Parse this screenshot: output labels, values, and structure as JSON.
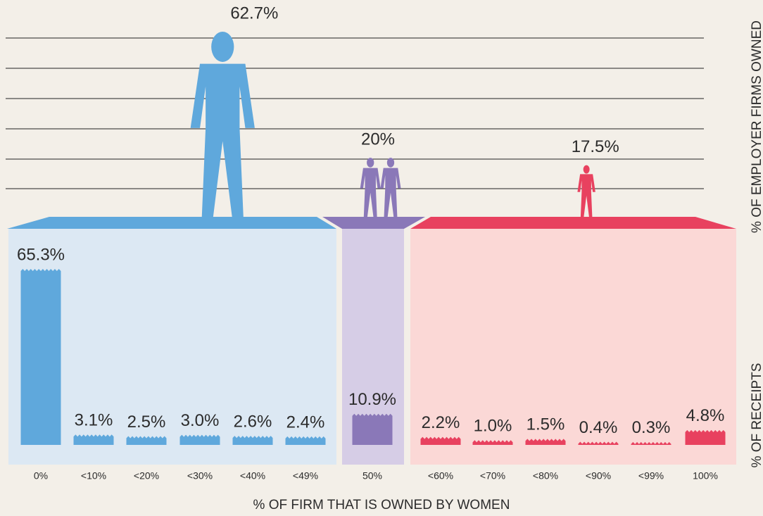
{
  "chart_data": {
    "type": "bar",
    "x_label": "% OF FIRM THAT IS OWNED BY WOMEN",
    "categories": [
      "0%",
      "<10%",
      "<20%",
      "<30%",
      "<40%",
      "<49%",
      "50%",
      "<60%",
      "<70%",
      "<80%",
      "<90%",
      "<99%",
      "100%"
    ],
    "receipts": {
      "label": "% OF RECEIPTS",
      "values": [
        65.3,
        3.1,
        2.5,
        3.0,
        2.6,
        2.4,
        10.9,
        2.2,
        1.0,
        1.5,
        0.4,
        0.3,
        4.8
      ],
      "value_labels": [
        "65.3%",
        "3.1%",
        "2.5%",
        "3.0%",
        "2.6%",
        "2.4%",
        "10.9%",
        "2.2%",
        "1.0%",
        "1.5%",
        "0.4%",
        "0.3%",
        "4.8%"
      ]
    },
    "employer_firms": {
      "label": "% OF EMPLOYER FIRMS OWNED",
      "values": [
        62.7,
        20,
        17.5
      ],
      "value_labels": [
        "62.7%",
        "20%",
        "17.5%"
      ]
    },
    "colors": [
      "#5fa8dc",
      "#8a78b8",
      "#e8415f"
    ]
  }
}
